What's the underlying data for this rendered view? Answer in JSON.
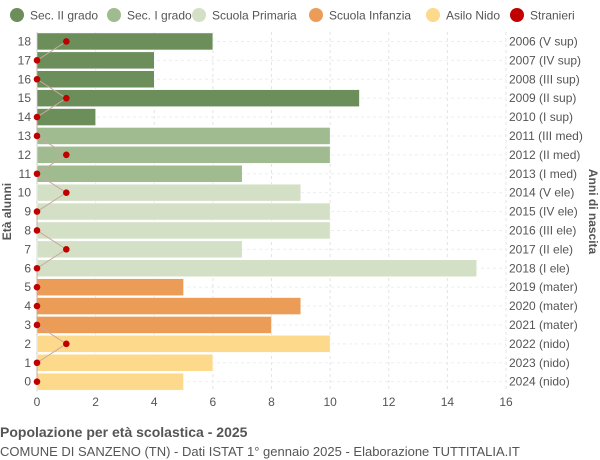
{
  "chart_data": {
    "type": "bar",
    "orientation": "horizontal",
    "title": "Popolazione per età scolastica - 2025",
    "subtitle": "COMUNE DI SANZENO (TN) - Dati ISTAT 1° gennaio 2025 - Elaborazione TUTTITALIA.IT",
    "ylabel": "Età alunni",
    "ylabel_right": "Anni di nascita",
    "xlim": [
      0,
      16
    ],
    "xticks": [
      0,
      2,
      4,
      6,
      8,
      10,
      12,
      14,
      16
    ],
    "grid": true,
    "legend_position": "top",
    "legend": [
      {
        "name": "Sec. II grado",
        "color": "#6b8e5a"
      },
      {
        "name": "Sec. I grado",
        "color": "#9fbb8f"
      },
      {
        "name": "Scuola Primaria",
        "color": "#d4e0c5"
      },
      {
        "name": "Scuola Infanzia",
        "color": "#eb9c56"
      },
      {
        "name": "Asilo Nido",
        "color": "#fdd98b"
      },
      {
        "name": "Stranieri",
        "color": "#c00000"
      }
    ],
    "rows": [
      {
        "age": 18,
        "birth": "2006 (V sup)",
        "value": 6,
        "stranieri": 1,
        "group": 0
      },
      {
        "age": 17,
        "birth": "2007 (IV sup)",
        "value": 4,
        "stranieri": 0,
        "group": 0
      },
      {
        "age": 16,
        "birth": "2008 (III sup)",
        "value": 4,
        "stranieri": 0,
        "group": 0
      },
      {
        "age": 15,
        "birth": "2009 (II sup)",
        "value": 11,
        "stranieri": 1,
        "group": 0
      },
      {
        "age": 14,
        "birth": "2010 (I sup)",
        "value": 2,
        "stranieri": 0,
        "group": 0
      },
      {
        "age": 13,
        "birth": "2011 (III med)",
        "value": 10,
        "stranieri": 0,
        "group": 1
      },
      {
        "age": 12,
        "birth": "2012 (II med)",
        "value": 10,
        "stranieri": 1,
        "group": 1
      },
      {
        "age": 11,
        "birth": "2013 (I med)",
        "value": 7,
        "stranieri": 0,
        "group": 1
      },
      {
        "age": 10,
        "birth": "2014 (V ele)",
        "value": 9,
        "stranieri": 1,
        "group": 2
      },
      {
        "age": 9,
        "birth": "2015 (IV ele)",
        "value": 10,
        "stranieri": 0,
        "group": 2
      },
      {
        "age": 8,
        "birth": "2016 (III ele)",
        "value": 10,
        "stranieri": 0,
        "group": 2
      },
      {
        "age": 7,
        "birth": "2017 (II ele)",
        "value": 7,
        "stranieri": 1,
        "group": 2
      },
      {
        "age": 6,
        "birth": "2018 (I ele)",
        "value": 15,
        "stranieri": 0,
        "group": 2
      },
      {
        "age": 5,
        "birth": "2019 (mater)",
        "value": 5,
        "stranieri": 0,
        "group": 3
      },
      {
        "age": 4,
        "birth": "2020 (mater)",
        "value": 9,
        "stranieri": 0,
        "group": 3
      },
      {
        "age": 3,
        "birth": "2021 (mater)",
        "value": 8,
        "stranieri": 0,
        "group": 3
      },
      {
        "age": 2,
        "birth": "2022 (nido)",
        "value": 10,
        "stranieri": 1,
        "group": 4
      },
      {
        "age": 1,
        "birth": "2023 (nido)",
        "value": 6,
        "stranieri": 0,
        "group": 4
      },
      {
        "age": 0,
        "birth": "2024 (nido)",
        "value": 5,
        "stranieri": 0,
        "group": 4
      }
    ]
  }
}
